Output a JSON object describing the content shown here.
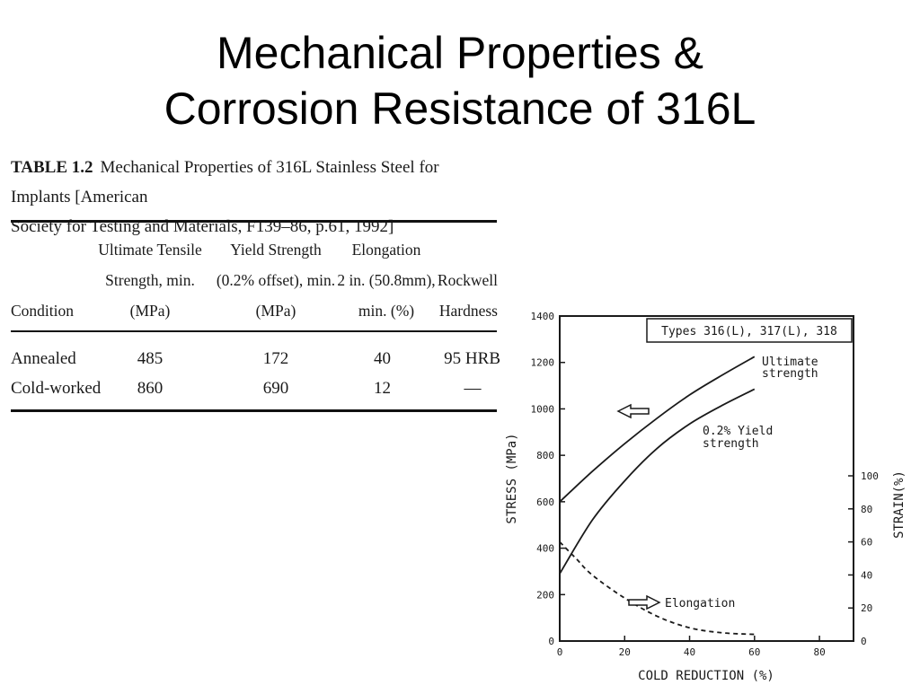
{
  "slide": {
    "title_line1": "Mechanical Properties &",
    "title_line2": "Corrosion Resistance of 316L"
  },
  "table": {
    "label": "TABLE 1.2",
    "caption_line1": "Mechanical Properties of 316L Stainless Steel for Implants [American",
    "caption_line2": "Society for Testing and Materials, F139–86, p.61, 1992]",
    "headers": {
      "condition": [
        "Condition"
      ],
      "uts": [
        "Ultimate Tensile",
        "Strength, min.",
        "(MPa)"
      ],
      "yield": [
        "Yield Strength",
        "(0.2% offset), min.",
        "(MPa)"
      ],
      "elongation": [
        "Elongation",
        "2 in. (50.8mm),",
        "min. (%)"
      ],
      "hardness": [
        "Rockwell",
        "Hardness"
      ]
    },
    "rows": [
      {
        "condition": "Annealed",
        "uts": "485",
        "yield": "172",
        "elongation": "40",
        "hardness": "95 HRB"
      },
      {
        "condition": "Cold-worked",
        "uts": "860",
        "yield": "690",
        "elongation": "12",
        "hardness": "—"
      }
    ]
  },
  "chart_data": {
    "type": "line",
    "legend_box": "Types 316(L), 317(L), 318",
    "xlabel": "COLD REDUCTION (%)",
    "ylabel": "STRESS (MPa)",
    "y2label": "STRAIN(%)",
    "xlim": [
      0,
      90
    ],
    "ylim": [
      0,
      1400
    ],
    "y2lim": [
      0,
      100
    ],
    "xticks": [
      0,
      20,
      40,
      60,
      80
    ],
    "yticks": [
      0,
      200,
      400,
      600,
      800,
      1000,
      1200,
      1400
    ],
    "y2ticks": [
      0,
      20,
      40,
      60,
      80,
      100
    ],
    "series": [
      {
        "name": "Ultimate strength",
        "label_lines": [
          "Ultimate",
          "strength"
        ],
        "axis": "left",
        "style": "solid",
        "x": [
          0,
          10,
          20,
          30,
          40,
          50,
          60
        ],
        "y": [
          600,
          730,
          850,
          960,
          1060,
          1145,
          1225
        ]
      },
      {
        "name": "0.2% Yield strength",
        "label_lines": [
          "0.2% Yield",
          "strength"
        ],
        "axis": "left",
        "style": "solid",
        "x": [
          0,
          10,
          20,
          30,
          40,
          50,
          60
        ],
        "y": [
          290,
          520,
          690,
          830,
          935,
          1015,
          1085
        ]
      },
      {
        "name": "Elongation",
        "label_lines": [
          "Elongation"
        ],
        "axis": "right",
        "style": "dashed",
        "x": [
          0,
          5,
          10,
          20,
          30,
          40,
          50,
          60
        ],
        "y": [
          60,
          50,
          40,
          26,
          15,
          8,
          5,
          4
        ]
      }
    ],
    "grid": false
  }
}
